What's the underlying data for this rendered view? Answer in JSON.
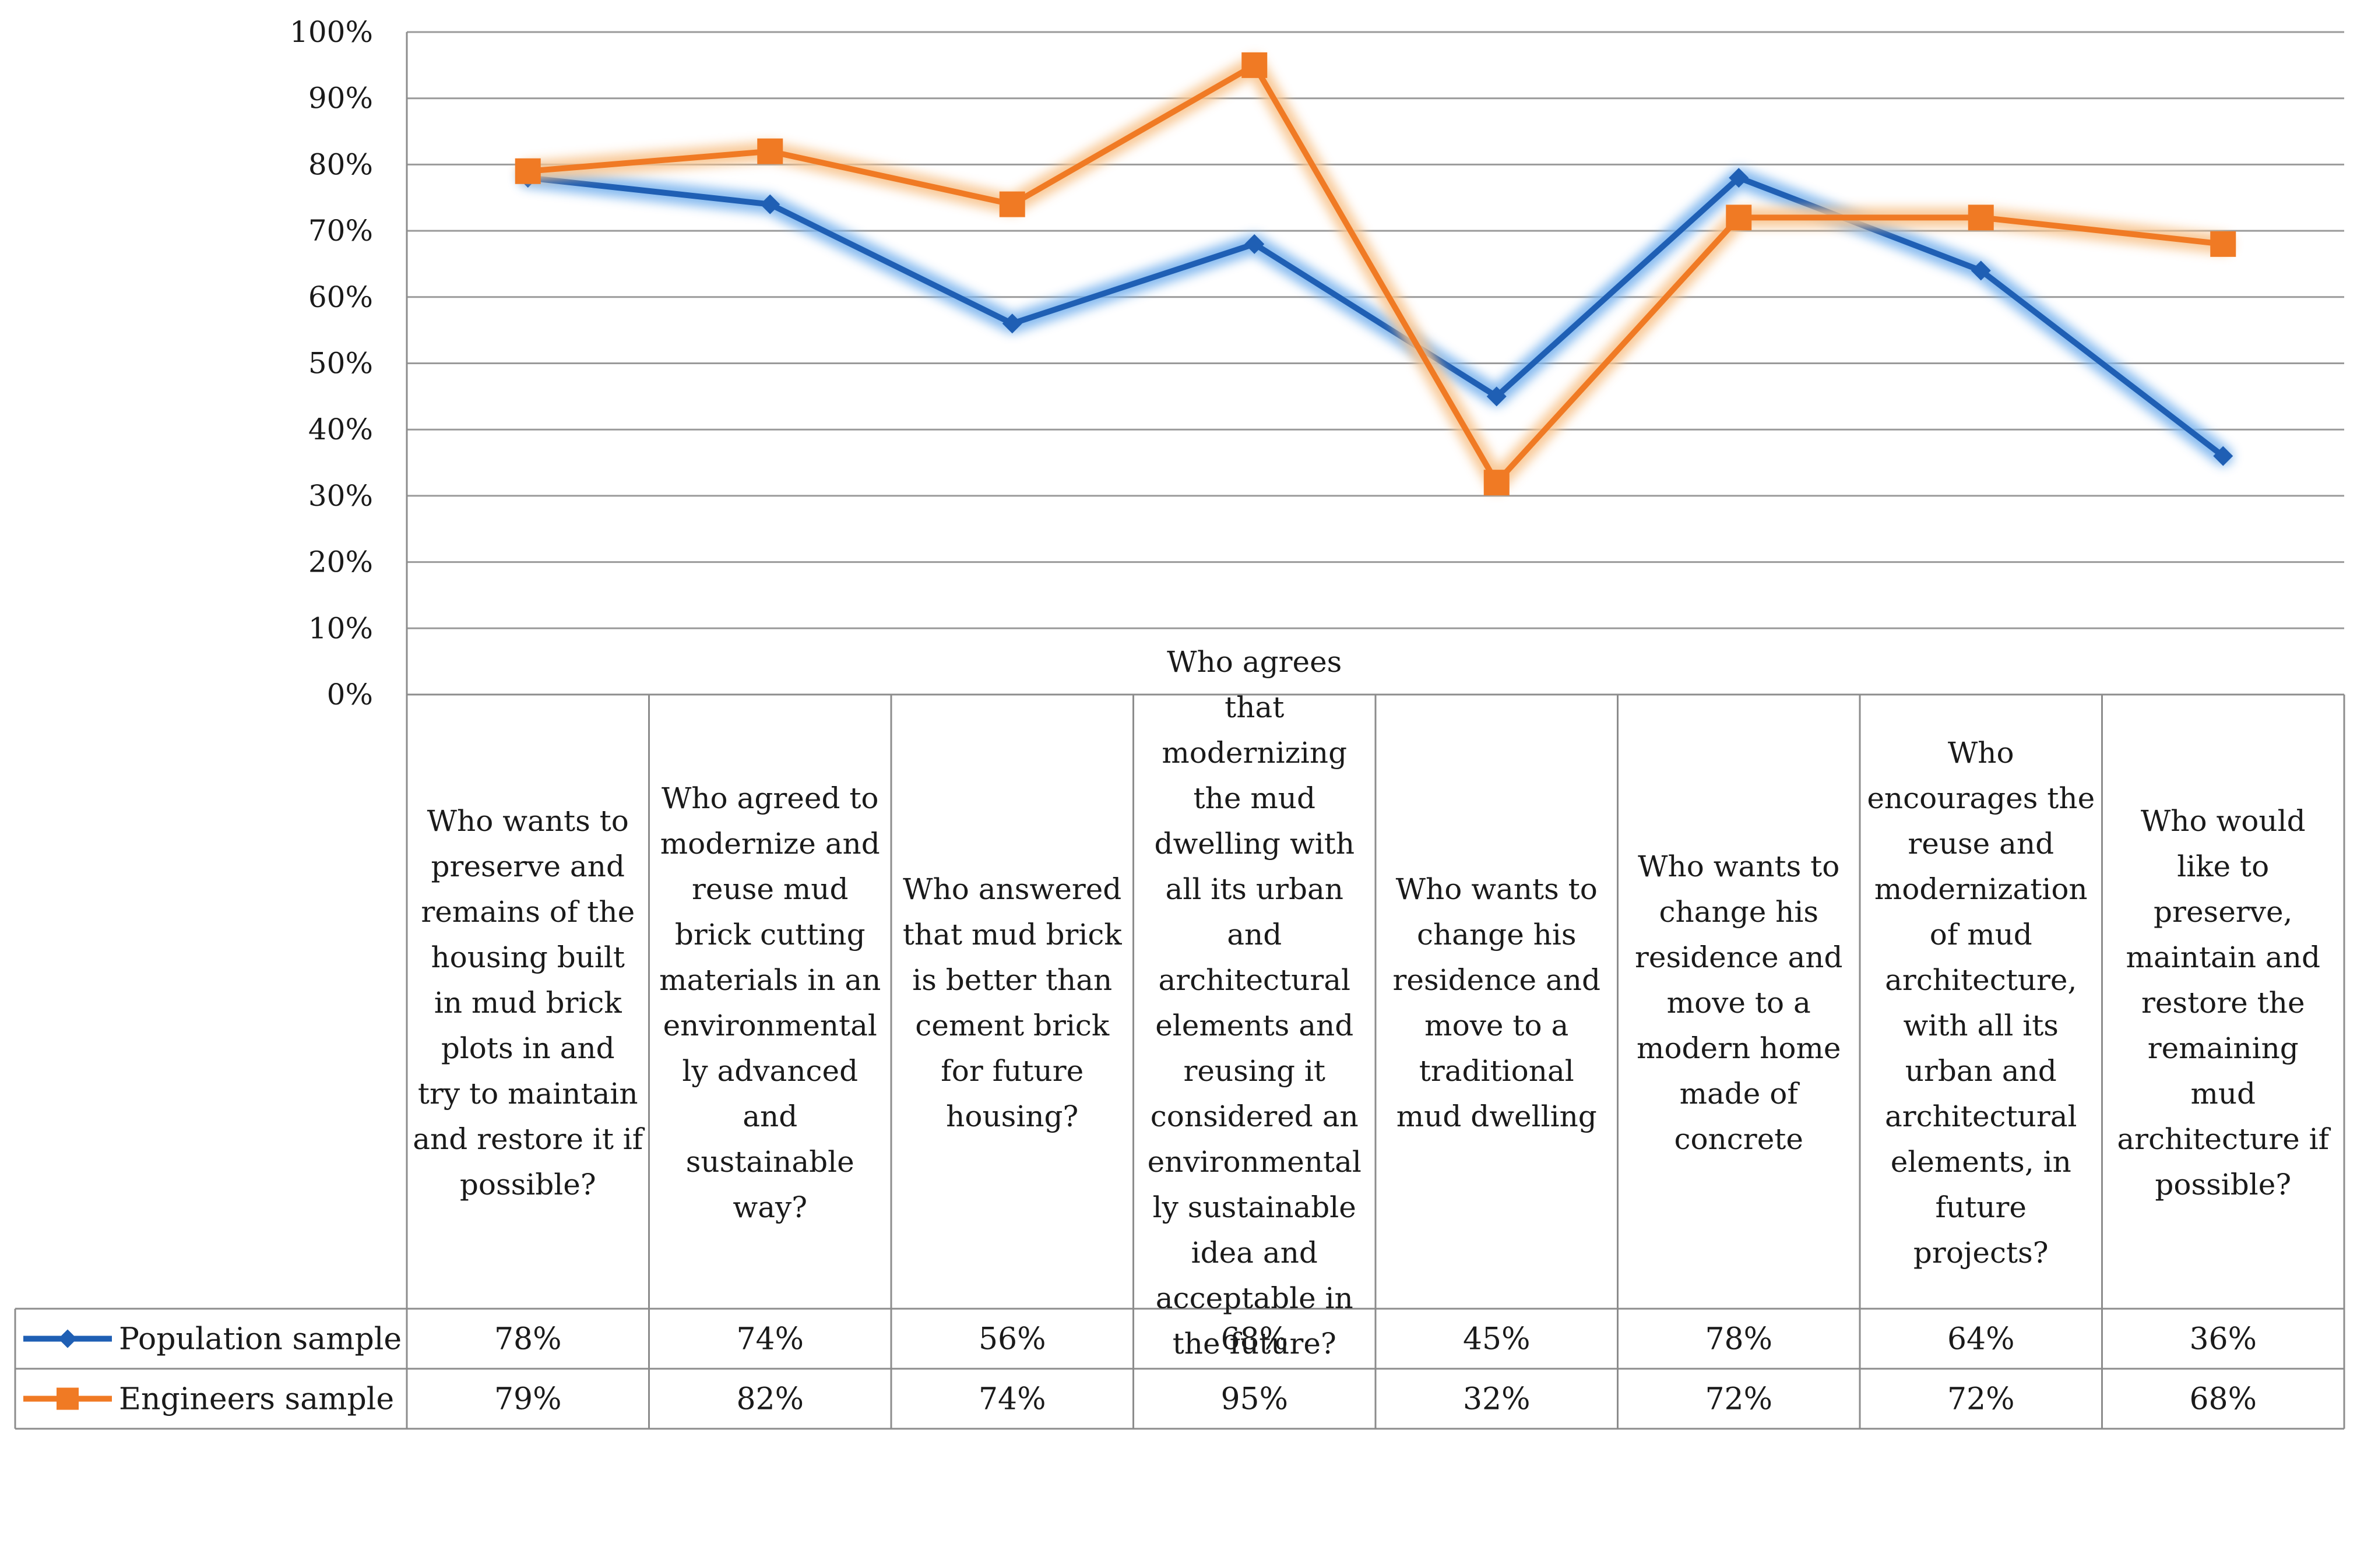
{
  "chart_data": {
    "type": "line",
    "title": "",
    "xlabel": "",
    "ylabel": "",
    "ylim": [
      0,
      100
    ],
    "yticks": [
      "0%",
      "10%",
      "20%",
      "30%",
      "40%",
      "50%",
      "60%",
      "70%",
      "80%",
      "90%",
      "100%"
    ],
    "grid": true,
    "categories": [
      [
        "Who wants to",
        "preserve and",
        "remains of the",
        "housing built",
        "in mud brick",
        "plots in and",
        "try to maintain",
        "and restore it if",
        "possible?"
      ],
      [
        "Who agreed to",
        "modernize and",
        "reuse mud",
        "brick cutting",
        "materials in an",
        "environmental",
        "ly advanced",
        "and",
        "sustainable",
        "way?"
      ],
      [
        "Who answered",
        "that mud brick",
        "is better than",
        "cement brick",
        "for future",
        "housing?"
      ],
      [
        "Who agrees",
        "that",
        "modernizing",
        "the mud",
        "dwelling with",
        "all its urban",
        "and",
        "architectural",
        "elements and",
        "reusing it",
        "considered an",
        "environmental",
        "ly sustainable",
        "idea and",
        "acceptable in",
        "the future?"
      ],
      [
        "Who wants to",
        "change his",
        "residence and",
        "move to a",
        "traditional",
        "mud dwelling"
      ],
      [
        "Who wants to",
        "change his",
        "residence and",
        "move to a",
        "modern home",
        "made of",
        "concrete"
      ],
      [
        "Who",
        "encourages the",
        "reuse and",
        "modernization",
        "of mud",
        "architecture,",
        "with all its",
        "urban and",
        "architectural",
        "elements, in",
        "future",
        "projects?"
      ],
      [
        "Who would",
        "like to",
        "preserve,",
        "maintain and",
        "restore the",
        "remaining",
        "mud",
        "architecture if",
        "possible?"
      ]
    ],
    "series": [
      {
        "name": "Population sample",
        "color": "#1f5fb4",
        "glow": "#7ab4ee",
        "marker": "diamond",
        "values": [
          78,
          74,
          56,
          68,
          45,
          78,
          64,
          36
        ],
        "labels": [
          "78%",
          "74%",
          "56%",
          "68%",
          "45%",
          "78%",
          "64%",
          "36%"
        ]
      },
      {
        "name": "Engineers sample",
        "color": "#f07a24",
        "glow": "#f8c48e",
        "marker": "square",
        "values": [
          79,
          82,
          74,
          95,
          32,
          72,
          72,
          68
        ],
        "labels": [
          "79%",
          "82%",
          "74%",
          "95%",
          "32%",
          "72%",
          "72%",
          "68%"
        ]
      }
    ],
    "legend": "data-table-left"
  }
}
